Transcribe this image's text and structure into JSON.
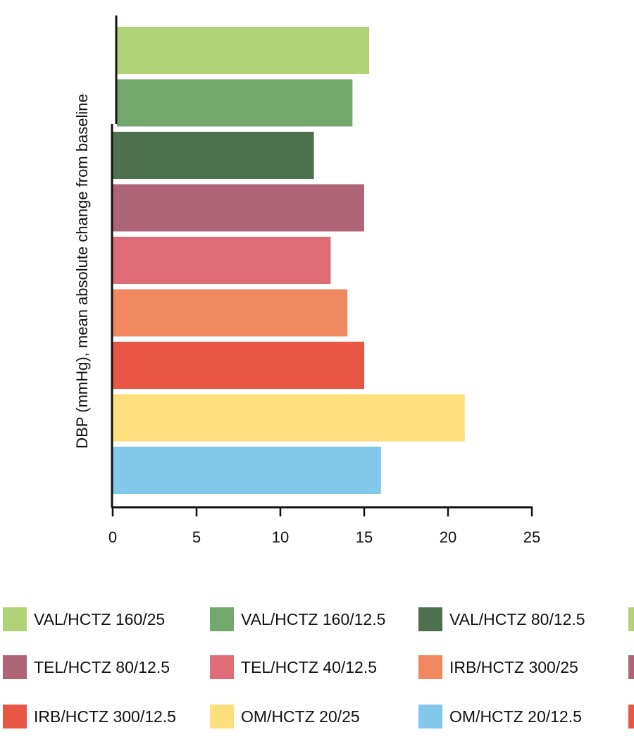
{
  "chart_data": {
    "type": "bar",
    "orientation": "horizontal",
    "ylabel": "DBP (mmHg), mean absolute change from baseline",
    "xlabel": "",
    "xlim": [
      0,
      25
    ],
    "xticks": [
      0,
      5,
      10,
      15,
      20,
      25
    ],
    "grid": false,
    "legend_position": "bottom",
    "bars": [
      {
        "label": "VAL/HCTZ 160/25",
        "value": 15.3,
        "color": "#b2d278"
      },
      {
        "label": "VAL/HCTZ 160/12.5",
        "value": 14.3,
        "color": "#72a86c"
      },
      {
        "label": "VAL/HCTZ 80/12.5",
        "value": 12,
        "color": "#4d704e"
      },
      {
        "label": "TEL/HCTZ 80/12.5",
        "value": 15,
        "color": "#b06478"
      },
      {
        "label": "TEL/HCTZ 40/12.5",
        "value": 13,
        "color": "#e06c78"
      },
      {
        "label": "IRB/HCTZ 300/25",
        "value": 14,
        "color": "#f08860"
      },
      {
        "label": "IRB/HCTZ 300/12.5",
        "value": 15,
        "color": "#e85644"
      },
      {
        "label": "OM/HCTZ 20/25",
        "value": 21,
        "color": "#fddf7e"
      },
      {
        "label": "OM/HCTZ 20/12.5",
        "value": 16,
        "color": "#82c8ea"
      }
    ],
    "legend": [
      {
        "label": "VAL/HCTZ 160/25",
        "color": "#b2d278"
      },
      {
        "label": "VAL/HCTZ 160/12.5",
        "color": "#72a86c"
      },
      {
        "label": "VAL/HCTZ 80/12.5",
        "color": "#4d704e"
      },
      {
        "label": "",
        "color": "#b2d278"
      },
      {
        "label": "TEL/HCTZ 80/12.5",
        "color": "#b06478"
      },
      {
        "label": "TEL/HCTZ 40/12.5",
        "color": "#e06c78"
      },
      {
        "label": "IRB/HCTZ 300/25",
        "color": "#f08860"
      },
      {
        "label": "",
        "color": "#b06478"
      },
      {
        "label": "IRB/HCTZ 300/12.5",
        "color": "#e85644"
      },
      {
        "label": "OM/HCTZ 20/25",
        "color": "#fddf7e"
      },
      {
        "label": "OM/HCTZ 20/12.5",
        "color": "#82c8ea"
      },
      {
        "label": "",
        "color": "#e85644"
      }
    ]
  }
}
